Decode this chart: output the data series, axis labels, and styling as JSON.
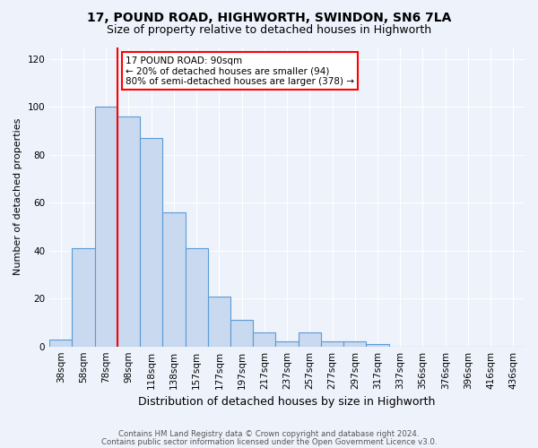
{
  "title": "17, POUND ROAD, HIGHWORTH, SWINDON, SN6 7LA",
  "subtitle": "Size of property relative to detached houses in Highworth",
  "xlabel": "Distribution of detached houses by size in Highworth",
  "ylabel": "Number of detached properties",
  "bar_color": "#c9d9f0",
  "bar_edge_color": "#5b9bd5",
  "background_color": "#eef2fb",
  "grid_color": "#ffffff",
  "bin_labels": [
    "38sqm",
    "58sqm",
    "78sqm",
    "98sqm",
    "118sqm",
    "138sqm",
    "157sqm",
    "177sqm",
    "197sqm",
    "217sqm",
    "237sqm",
    "257sqm",
    "277sqm",
    "297sqm",
    "317sqm",
    "337sqm",
    "356sqm",
    "376sqm",
    "396sqm",
    "416sqm",
    "436sqm"
  ],
  "bar_heights": [
    3,
    41,
    100,
    96,
    87,
    56,
    41,
    21,
    11,
    6,
    2,
    6,
    2,
    2,
    1,
    0,
    0,
    0,
    0,
    0,
    0
  ],
  "n_bins": 21,
  "red_line_bin": 2.5,
  "annotation_title": "17 POUND ROAD: 90sqm",
  "annotation_line1": "← 20% of detached houses are smaller (94)",
  "annotation_line2": "80% of semi-detached houses are larger (378) →",
  "annotation_box_color": "white",
  "annotation_border_color": "red",
  "ylim": [
    0,
    125
  ],
  "yticks": [
    0,
    20,
    40,
    60,
    80,
    100,
    120
  ],
  "title_fontsize": 10,
  "subtitle_fontsize": 9,
  "ylabel_fontsize": 8,
  "xlabel_fontsize": 9,
  "tick_fontsize": 7.5,
  "footer1": "Contains HM Land Registry data © Crown copyright and database right 2024.",
  "footer2": "Contains public sector information licensed under the Open Government Licence v3.0."
}
